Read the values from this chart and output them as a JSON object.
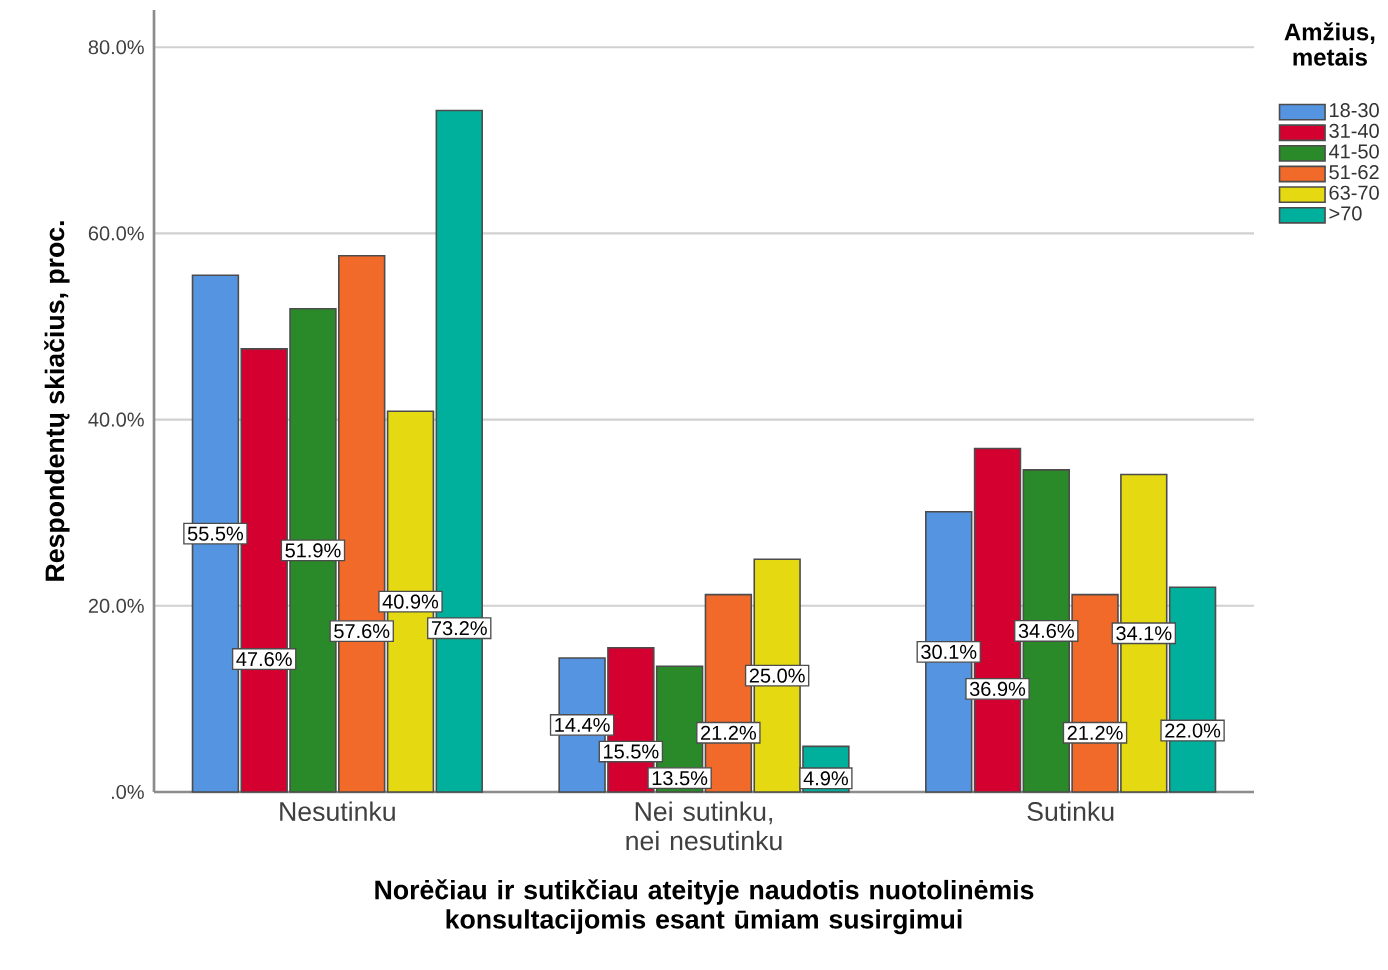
{
  "chart_data": {
    "type": "bar",
    "xlabel": "Norėčiau ir sutikčiau ateityje naudotis nuotolinėmis konsultacijomis esant ūmiam susirgimui",
    "ylabel": "Respondentų skiačius, proc.",
    "legend_title": "Amžius, metais",
    "categories": [
      "Nesutinku",
      "Nei sutinku, nei nesutinku",
      "Sutinku"
    ],
    "series": [
      {
        "name": "18-30",
        "color": "#5594e0",
        "values": [
          55.5,
          14.4,
          30.1
        ],
        "value_labels": [
          "55.5%",
          "14.4%",
          "30.1%"
        ]
      },
      {
        "name": "31-40",
        "color": "#d40030",
        "values": [
          47.6,
          15.5,
          36.9
        ],
        "value_labels": [
          "47.6%",
          "15.5%",
          "36.9%"
        ]
      },
      {
        "name": "41-50",
        "color": "#2a8a2a",
        "values": [
          51.9,
          13.5,
          34.6
        ],
        "value_labels": [
          "51.9%",
          "13.5%",
          "34.6%"
        ]
      },
      {
        "name": "51-62",
        "color": "#f26a2a",
        "values": [
          57.6,
          21.2,
          21.2
        ],
        "value_labels": [
          "57.6%",
          "21.2%",
          "21.2%"
        ]
      },
      {
        "name": "63-70",
        "color": "#e5d911",
        "values": [
          40.9,
          25.0,
          34.1
        ],
        "value_labels": [
          "40.9%",
          "25.0%",
          "34.1%"
        ]
      },
      {
        "name": ">70",
        "color": "#00b09d",
        "values": [
          73.2,
          4.9,
          22.0
        ],
        "value_labels": [
          "73.2%",
          "4.9%",
          "22.0%"
        ]
      }
    ],
    "ylim": [
      0,
      84
    ],
    "yticks": [
      {
        "value": 0,
        "label": ".0%"
      },
      {
        "value": 20,
        "label": "20.0%"
      },
      {
        "value": 40,
        "label": "40.0%"
      },
      {
        "value": 60,
        "label": "60.0%"
      },
      {
        "value": 80,
        "label": "80.0%"
      }
    ],
    "grid": "y",
    "legend": "top right"
  }
}
